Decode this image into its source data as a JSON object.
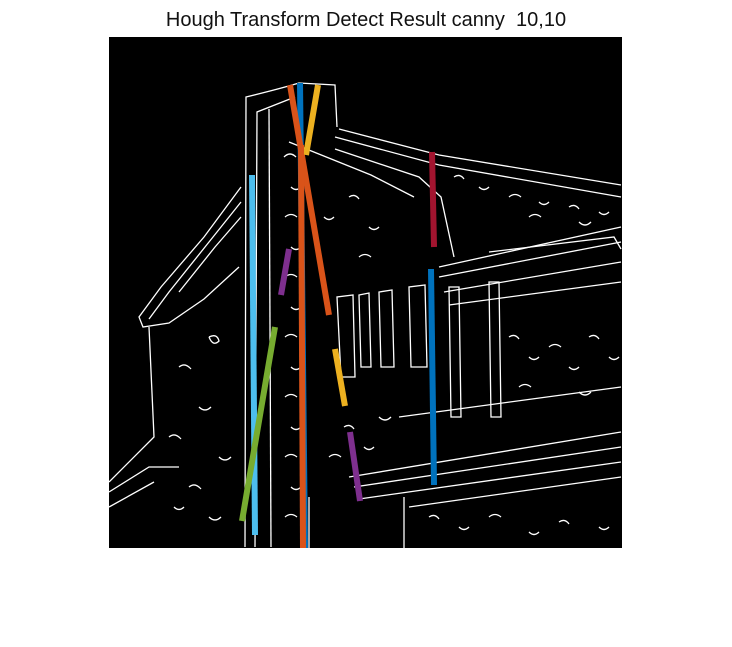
{
  "title": "Hough Transform Detect Result canny  10,10",
  "image": {
    "description": "Canny edge map of a stone house with chimney; detected Hough line segments overlaid",
    "background": "#000000",
    "edge_color": "#ffffff"
  },
  "line_colors": {
    "blue": "#0072BD",
    "orange": "#D95319",
    "yellow": "#EDB120",
    "purple": "#7E2F8E",
    "green": "#77AC30",
    "cyan": "#4DBEEE",
    "red": "#A2142F"
  },
  "segments": [
    {
      "color": "blue"
    },
    {
      "color": "orange"
    },
    {
      "color": "yellow"
    },
    {
      "color": "orange"
    },
    {
      "color": "cyan"
    },
    {
      "color": "purple"
    },
    {
      "color": "green"
    },
    {
      "color": "yellow"
    },
    {
      "color": "purple"
    },
    {
      "color": "red"
    },
    {
      "color": "blue"
    }
  ]
}
